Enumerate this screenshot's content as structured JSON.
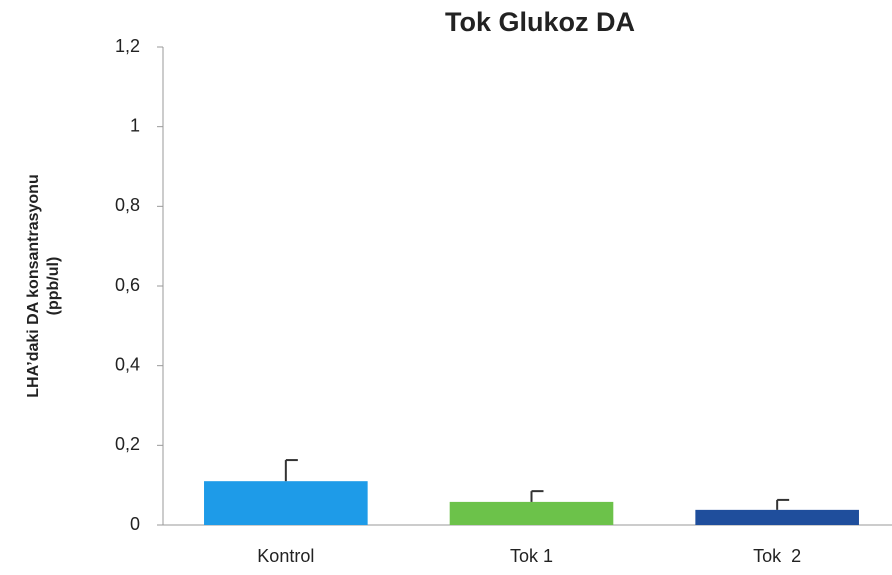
{
  "chart_data": {
    "type": "bar",
    "title": "Tok Glukoz DA",
    "ylabel": [
      "LHA’daki DA  konsantrasyonu",
      "(ppb/ul)"
    ],
    "categories": [
      "Kontrol",
      "Tok 1",
      "Tok  2"
    ],
    "values": [
      0.11,
      0.058,
      0.038
    ],
    "errors": [
      0.053,
      0.027,
      0.025
    ],
    "colors": [
      "#1e9be8",
      "#6cc24a",
      "#1f4e9c"
    ],
    "ylim": [
      0,
      1.2
    ],
    "yticks": [
      0,
      {
        "value": 0.2,
        "label": "0,2"
      },
      {
        "value": 0.4,
        "label": "0,4"
      },
      {
        "value": 0.6,
        "label": "0,6"
      },
      {
        "value": 0.8,
        "label": "0,8"
      },
      1,
      {
        "value": 1.2,
        "label": "1,2"
      }
    ],
    "grid": false
  }
}
